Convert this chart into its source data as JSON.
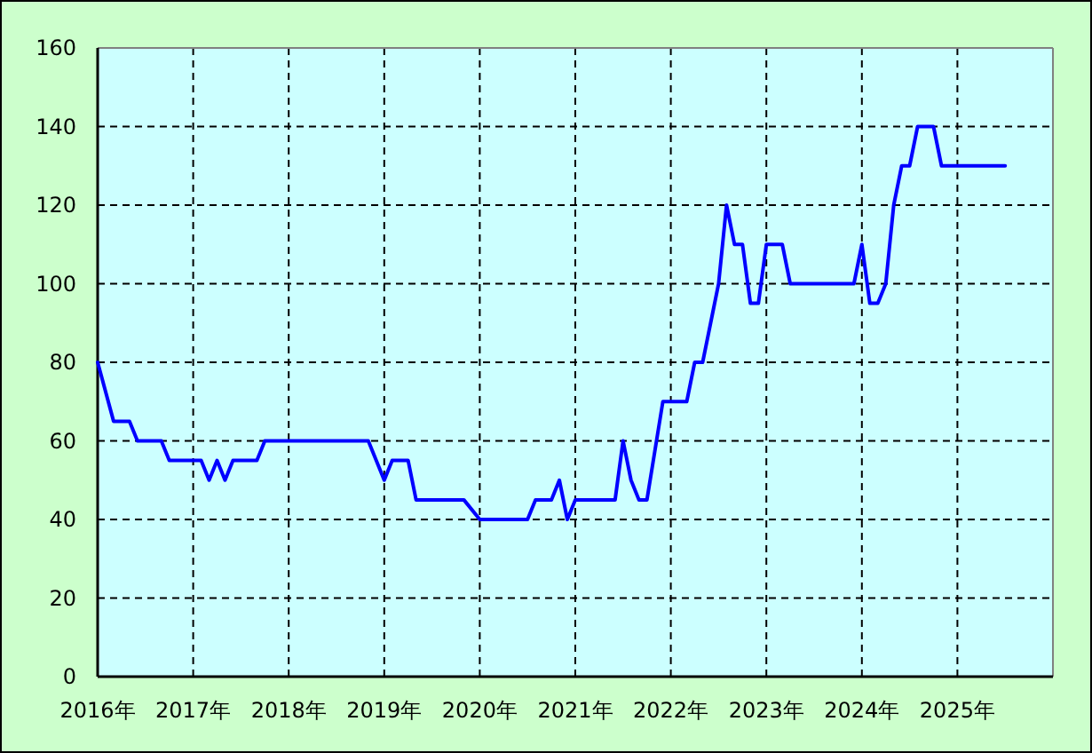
{
  "chart_data": {
    "type": "line",
    "x": [
      "2016-01",
      "2016-03",
      "2016-05",
      "2016-06",
      "2016-09",
      "2016-10",
      "2017-02",
      "2017-03",
      "2017-04",
      "2017-05",
      "2017-06",
      "2017-09",
      "2017-10",
      "2018-11",
      "2019-01",
      "2019-02",
      "2019-04",
      "2019-05",
      "2019-11",
      "2020-01",
      "2020-07",
      "2020-08",
      "2020-10",
      "2020-11",
      "2020-12",
      "2021-01",
      "2021-06",
      "2021-07",
      "2021-08",
      "2021-09",
      "2021-10",
      "2021-12",
      "2022-03",
      "2022-04",
      "2022-05",
      "2022-06",
      "2022-07",
      "2022-08",
      "2022-09",
      "2022-10",
      "2022-11",
      "2022-12",
      "2023-01",
      "2023-03",
      "2023-04",
      "2023-12",
      "2024-01",
      "2024-02",
      "2024-03",
      "2024-04",
      "2024-05",
      "2024-06",
      "2024-07",
      "2024-08",
      "2024-10",
      "2024-11",
      "2025-07"
    ],
    "series": [
      {
        "color": "#0000ff",
        "values": [
          80,
          65,
          65,
          60,
          60,
          55,
          55,
          50,
          55,
          50,
          55,
          55,
          60,
          60,
          50,
          55,
          55,
          45,
          45,
          40,
          40,
          45,
          45,
          50,
          40,
          45,
          45,
          60,
          50,
          45,
          45,
          70,
          70,
          80,
          80,
          90,
          100,
          120,
          110,
          110,
          95,
          95,
          110,
          110,
          100,
          100,
          110,
          95,
          95,
          100,
          120,
          130,
          130,
          140,
          140,
          130,
          130
        ]
      }
    ],
    "xlim": [
      "2016-01",
      "2026-01"
    ],
    "xticks": [
      {
        "value": "2016-01",
        "label": "2016年"
      },
      {
        "value": "2017-01",
        "label": "2017年"
      },
      {
        "value": "2018-01",
        "label": "2018年"
      },
      {
        "value": "2019-01",
        "label": "2019年"
      },
      {
        "value": "2020-01",
        "label": "2020年"
      },
      {
        "value": "2021-01",
        "label": "2021年"
      },
      {
        "value": "2022-01",
        "label": "2022年"
      },
      {
        "value": "2023-01",
        "label": "2023年"
      },
      {
        "value": "2024-01",
        "label": "2024年"
      },
      {
        "value": "2025-01",
        "label": "2025年"
      }
    ],
    "ylim": [
      0,
      160
    ],
    "yticks": [
      0,
      20,
      40,
      60,
      80,
      100,
      120,
      140,
      160
    ],
    "grid": true
  }
}
